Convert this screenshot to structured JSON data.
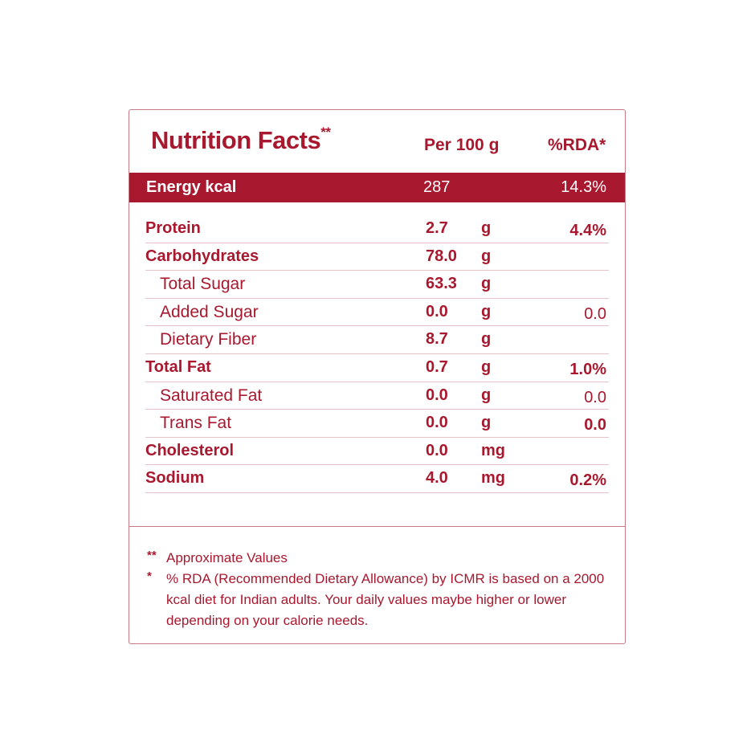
{
  "header": {
    "title": "Nutrition Facts",
    "title_mark": "**",
    "per_label": "Per 100 g",
    "rda_label": "%RDA*"
  },
  "energy": {
    "label": "Energy kcal",
    "value": "287",
    "rda": "14.3%"
  },
  "nutrients": [
    {
      "name": "Protein",
      "value": "2.7",
      "unit": "g",
      "rda": "4.4%"
    },
    {
      "name": "Carbohydrates",
      "value": "78.0",
      "unit": "g",
      "rda": ""
    },
    {
      "name": "Total Sugar",
      "value": "63.3",
      "unit": "g",
      "rda": ""
    },
    {
      "name": "Added Sugar",
      "value": "0.0",
      "unit": "g",
      "rda": "0.0"
    },
    {
      "name": "Dietary Fiber",
      "value": "8.7",
      "unit": "g",
      "rda": ""
    },
    {
      "name": "Total Fat",
      "value": "0.7",
      "unit": "g",
      "rda": "1.0%"
    },
    {
      "name": "Saturated Fat",
      "value": "0.0",
      "unit": "g",
      "rda": "0.0"
    },
    {
      "name": "Trans Fat",
      "value": "0.0",
      "unit": "g",
      "rda": "0.0"
    },
    {
      "name": "Cholesterol",
      "value": "0.0",
      "unit": "mg",
      "rda": ""
    },
    {
      "name": "Sodium",
      "value": "4.0",
      "unit": "mg",
      "rda": "0.2%"
    }
  ],
  "footnotes": [
    {
      "mark": "**",
      "text": "Approximate Values"
    },
    {
      "mark": "*",
      "text": "% RDA (Recommended Dietary Allowance) by ICMR is based on a 2000 kcal diet for Indian adults. Your daily values maybe higher or lower depending on your calorie needs."
    }
  ],
  "colors": {
    "accent": "#a8182e",
    "rule": "#e8c4ca",
    "border": "#c97a86"
  }
}
